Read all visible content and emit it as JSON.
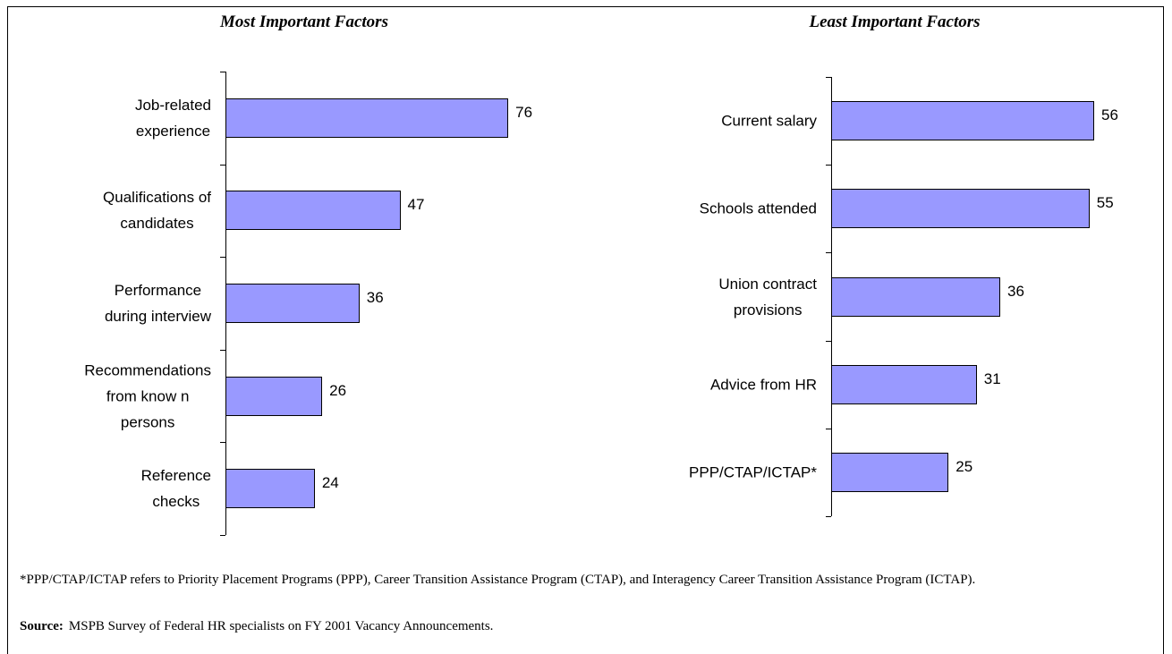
{
  "chart_data": [
    {
      "type": "bar",
      "orientation": "horizontal",
      "title": "Most Important Factors",
      "categories": [
        "Job-related\nexperience",
        "Qualifications of\ncandidates",
        "Performance\nduring interview",
        "Recommendations\nfrom know n\npersons",
        "Reference\nchecks"
      ],
      "values": [
        76,
        47,
        36,
        26,
        24
      ],
      "color": "#9999ff",
      "xlim": [
        0,
        100
      ]
    },
    {
      "type": "bar",
      "orientation": "horizontal",
      "title": "Least Important Factors",
      "categories": [
        "Current salary",
        "Schools attended",
        "Union contract\nprovisions",
        "Advice from HR",
        "PPP/CTAP/ICTAP*"
      ],
      "values": [
        56,
        55,
        36,
        31,
        25
      ],
      "color": "#9999ff",
      "xlim": [
        0,
        100
      ]
    }
  ],
  "footnote": "*PPP/CTAP/ICTAP refers to Priority Placement Programs (PPP), Career Transition Assistance Program (CTAP), and Interagency Career Transition Assistance Program (ICTAP).",
  "source": {
    "label": "Source:",
    "text": "MSPB Survey of Federal HR specialists on FY 2001 Vacancy Announcements."
  }
}
